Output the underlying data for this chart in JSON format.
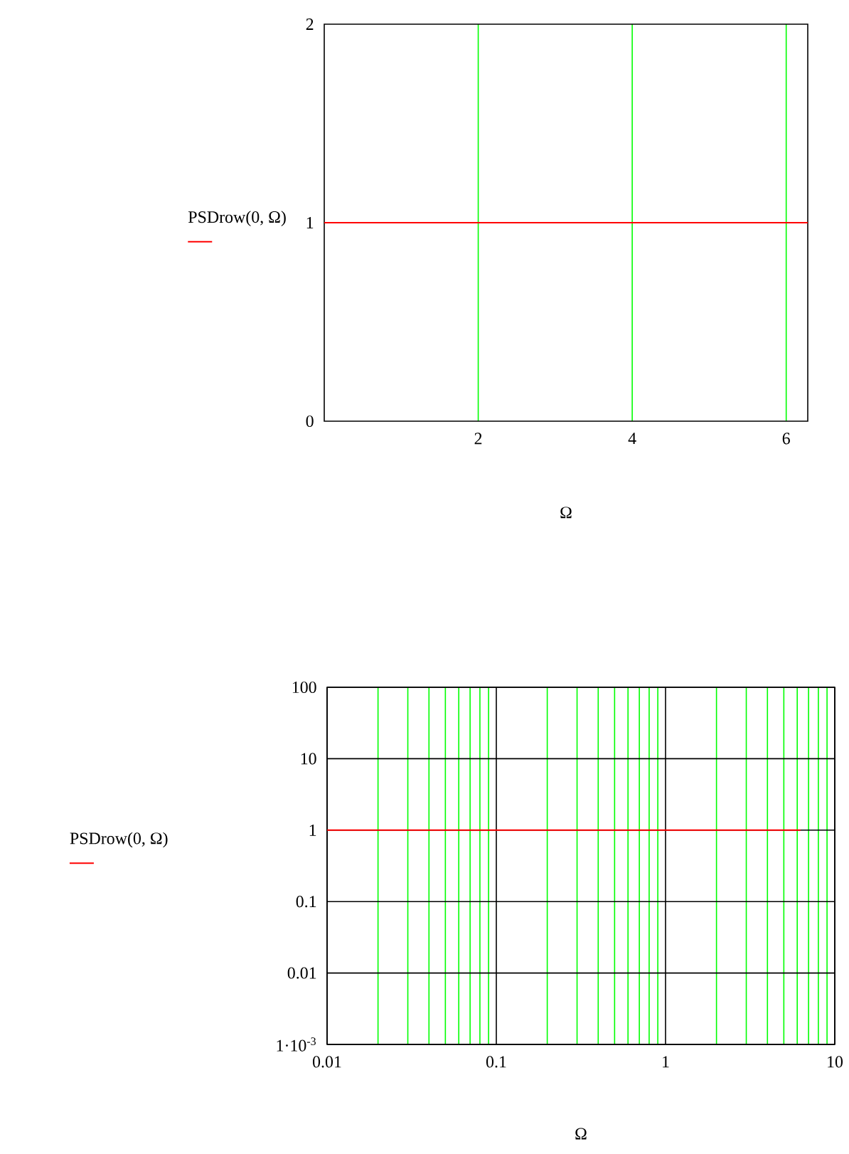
{
  "chart_data": [
    {
      "type": "line",
      "xlabel": "Ω",
      "ylabel": "PSDrow(0, Ω)",
      "series": [
        {
          "color": "#ff0000",
          "x": [
            0,
            6.28
          ],
          "values": [
            1,
            1
          ]
        }
      ],
      "xlim": [
        0,
        6.28
      ],
      "ylim": [
        0,
        2
      ],
      "xticks": [
        2,
        4,
        6
      ],
      "yticks": [
        0,
        1,
        2
      ],
      "grid": "x"
    },
    {
      "type": "line",
      "xlabel": "Ω",
      "ylabel": "PSDrow(0, Ω)",
      "series": [
        {
          "color": "#ff0000",
          "x": [
            0.01,
            6.28
          ],
          "values": [
            1,
            1
          ]
        }
      ],
      "xlim": [
        0.01,
        10
      ],
      "ylim": [
        0.001,
        100
      ],
      "xticks": [
        0.01,
        {
          "value": 0.02,
          "label": null
        },
        {
          "value": 0.03,
          "label": null
        },
        {
          "value": 0.04,
          "label": null
        },
        {
          "value": 0.05,
          "label": null
        },
        {
          "value": 0.06,
          "label": null
        },
        {
          "value": 0.07,
          "label": null
        },
        {
          "value": 0.08,
          "label": null
        },
        {
          "value": 0.09,
          "label": null
        },
        0.1,
        {
          "value": 0.2,
          "label": null
        },
        {
          "value": 0.3,
          "label": null
        },
        {
          "value": 0.4,
          "label": null
        },
        {
          "value": 0.5,
          "label": null
        },
        {
          "value": 0.6,
          "label": null
        },
        {
          "value": 0.7,
          "label": null
        },
        {
          "value": 0.8,
          "label": null
        },
        {
          "value": 0.9,
          "label": null
        },
        1,
        {
          "value": 2,
          "label": null
        },
        {
          "value": 3,
          "label": null
        },
        {
          "value": 4,
          "label": null
        },
        {
          "value": 5,
          "label": null
        },
        {
          "value": 6,
          "label": null
        },
        {
          "value": 7,
          "label": null
        },
        {
          "value": 8,
          "label": null
        },
        {
          "value": 9,
          "label": null
        },
        10
      ],
      "yticks": [
        {
          "value": 0.001,
          "label": "1·10$^{-3}$"
        },
        0.01,
        0.1,
        1,
        10,
        100
      ],
      "log": "xy",
      "grid": true
    }
  ]
}
